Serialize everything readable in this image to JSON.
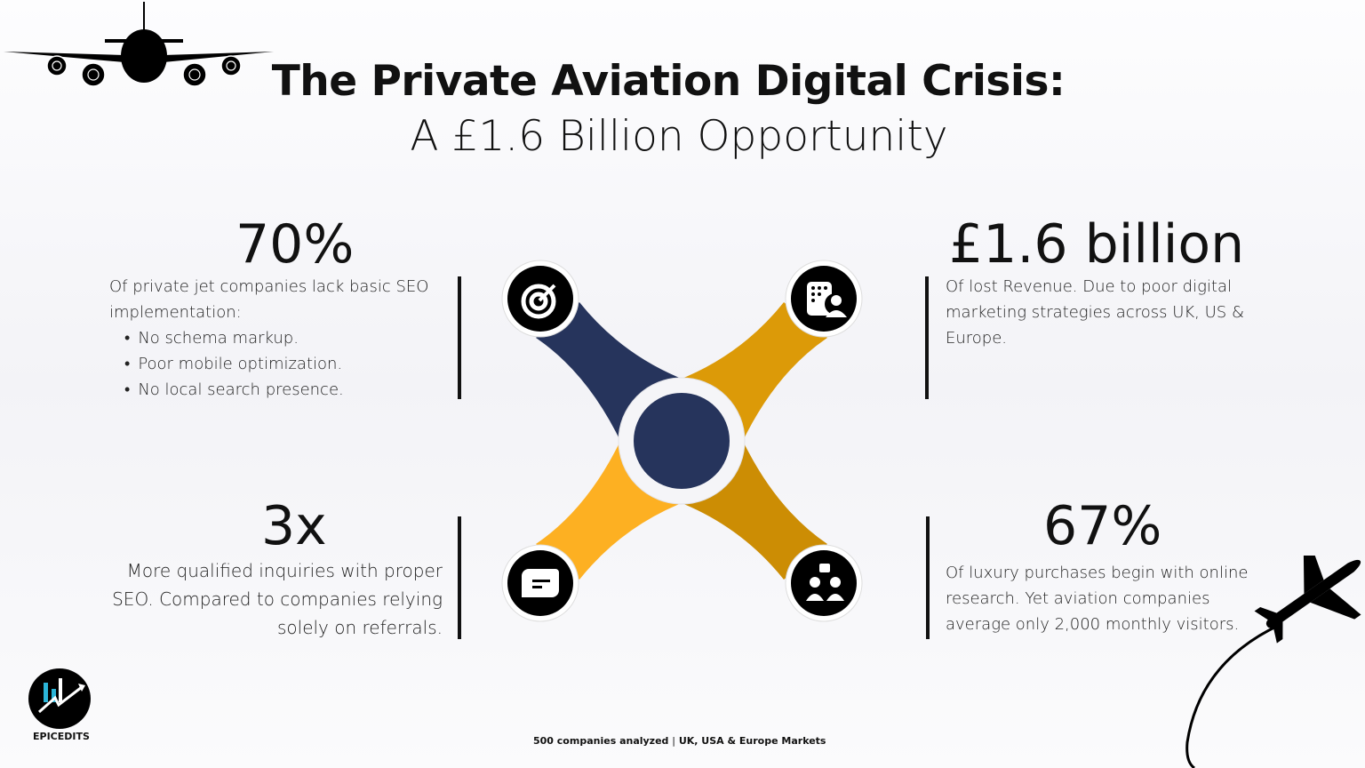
{
  "header": {
    "title": "The Private Aviation Digital Crisis:",
    "subtitle": "A £1.6 Billion Opportunity"
  },
  "stats": [
    {
      "value": "70%",
      "text": "Of private jet companies lack basic SEO implementation:",
      "bullets": [
        "No schema markup.",
        "Poor mobile optimization.",
        "No local search presence."
      ]
    },
    {
      "value": "£1.6 billion",
      "text": "Of lost Revenue. Due to poor digital marketing strategies across UK, US & Europe."
    },
    {
      "value": "3x",
      "text": "More qualified inquiries with proper SEO. Compared to companies relying solely on referrals."
    },
    {
      "value": "67%",
      "text": "Of luxury purchases begin with online research. Yet aviation companies average only 2,000 monthly visitors."
    }
  ],
  "diagram": {
    "icons": [
      "target-icon",
      "contact-directory-icon",
      "message-icon",
      "team-hierarchy-icon"
    ],
    "colors": {
      "navy": "#26345c",
      "orange": "#dc9a08",
      "yellow": "#fdb022",
      "dark_gold": "#cc8d04"
    }
  },
  "logo": {
    "name": "EPICEDITS"
  },
  "footer": {
    "left": "500 companies analyzed",
    "right": "UK, USA & Europe Markets"
  }
}
